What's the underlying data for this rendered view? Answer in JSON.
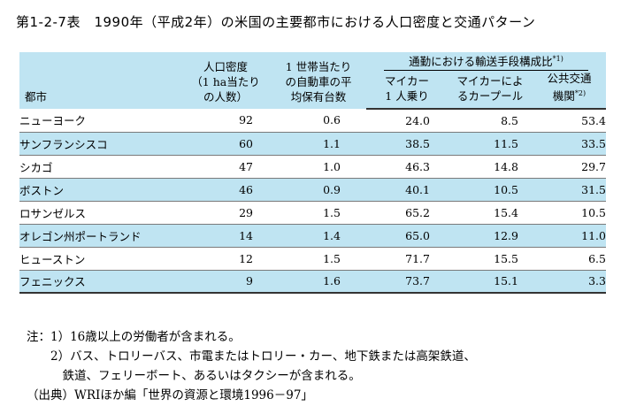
{
  "title": "第1-2-7表　1990年（平成2年）の米国の主要都市における人口密度と交通パターン",
  "table": {
    "group_header": "通勤における輸送手段構成比",
    "group_header_sup": "*1)",
    "col_city": "都市",
    "col_density": [
      "人口密度",
      "（1 ha当たり",
      "の人数）"
    ],
    "col_cars": [
      "1 世帯当たり",
      "の自動車の平",
      "均保有台数"
    ],
    "col_car1": [
      "マイカー",
      "1 人乗り"
    ],
    "col_carpool": [
      "マイカーによ",
      "るカープール"
    ],
    "col_public": [
      "公共交通",
      "機関"
    ],
    "col_public_sup": "*2)",
    "rows": [
      {
        "city": "ニューヨーク",
        "density": "92",
        "cars": "0.6",
        "car1": "24.0",
        "carpool": "8.5",
        "public": "53.4"
      },
      {
        "city": "サンフランシスコ",
        "density": "60",
        "cars": "1.1",
        "car1": "38.5",
        "carpool": "11.5",
        "public": "33.5"
      },
      {
        "city": "シカゴ",
        "density": "47",
        "cars": "1.0",
        "car1": "46.3",
        "carpool": "14.8",
        "public": "29.7"
      },
      {
        "city": "ボストン",
        "density": "46",
        "cars": "0.9",
        "car1": "40.1",
        "carpool": "10.5",
        "public": "31.5"
      },
      {
        "city": "ロサンゼルス",
        "density": "29",
        "cars": "1.5",
        "car1": "65.2",
        "carpool": "15.4",
        "public": "10.5"
      },
      {
        "city": "オレゴン州ポートランド",
        "density": "14",
        "cars": "1.4",
        "car1": "65.0",
        "carpool": "12.9",
        "public": "11.0"
      },
      {
        "city": "ヒューストン",
        "density": "12",
        "cars": "1.5",
        "car1": "71.7",
        "carpool": "15.5",
        "public": "6.5"
      },
      {
        "city": "フェニックス",
        "density": "9",
        "cars": "1.6",
        "car1": "73.7",
        "carpool": "15.1",
        "public": "3.3"
      }
    ]
  },
  "notes": [
    "注：1）16歳以上の労働者が含まれる。",
    "　　2）バス、トロリーバス、市電またはトロリー・カー、地下鉄または高架鉄道、",
    "　　　鉄道、フェリーボート、あるいはタクシーが含まれる。",
    "（出典）WRIほか編「世界の資源と環境1996－97」"
  ],
  "colors": {
    "header_bg": "#bfe4f2",
    "row_shade": "#bfe4f2"
  }
}
